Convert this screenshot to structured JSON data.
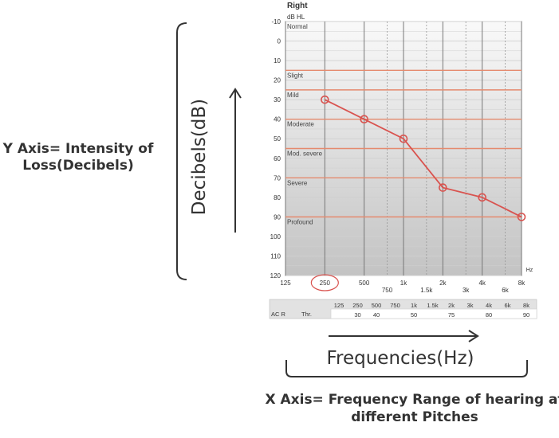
{
  "annotations": {
    "y_axis": "Y Axis= Intensity of Loss(Decibels)",
    "y_arrow_label": "Decibels(dB)",
    "x_arrow_label": "Frequencies(Hz)",
    "x_axis": "X Axis= Frequency Range of hearing at different Pitches"
  },
  "chart_data": {
    "type": "line",
    "title": "Right",
    "ylabel": "dB HL",
    "xunit": "Hz",
    "ylim": [
      -10,
      120
    ],
    "y_ticks": [
      "-10",
      "0",
      "10",
      "20",
      "30",
      "40",
      "50",
      "60",
      "70",
      "80",
      "90",
      "100",
      "110",
      "120"
    ],
    "x_ticks_major": [
      "125",
      "250",
      "500",
      "1k",
      "2k",
      "4k",
      "8k"
    ],
    "x_ticks_minor": [
      "750",
      "1.5k",
      "3k",
      "6k"
    ],
    "circled_tick": "250",
    "grid": true,
    "bands": [
      {
        "label": "Normal",
        "from": -10,
        "to": 15
      },
      {
        "label": "Slight",
        "from": 15,
        "to": 25
      },
      {
        "label": "Mild",
        "from": 25,
        "to": 40
      },
      {
        "label": "Moderate",
        "from": 40,
        "to": 55
      },
      {
        "label": "Mod. severe",
        "from": 55,
        "to": 70
      },
      {
        "label": "Severe",
        "from": 70,
        "to": 90
      },
      {
        "label": "Profound",
        "from": 90,
        "to": 120
      }
    ],
    "series": [
      {
        "x": [
          "250",
          "500",
          "1k",
          "2k",
          "4k",
          "8k"
        ],
        "y": [
          30,
          40,
          50,
          75,
          80,
          90
        ],
        "color": "#d9534f"
      }
    ]
  },
  "threshold_table": {
    "frequency_headers": [
      "125",
      "250",
      "500",
      "750",
      "1k",
      "1.5k",
      "2k",
      "3k",
      "4k",
      "6k",
      "8k"
    ],
    "row_label": "AC R",
    "row_sub_label": "Thr.",
    "values": [
      "",
      "30",
      "40",
      "",
      "50",
      "",
      "75",
      "",
      "80",
      "",
      "90"
    ]
  },
  "colors": {
    "series": "#d9534f",
    "band_line": "#e58a6e",
    "grid": "#d0d0d0",
    "text": "#333333"
  }
}
